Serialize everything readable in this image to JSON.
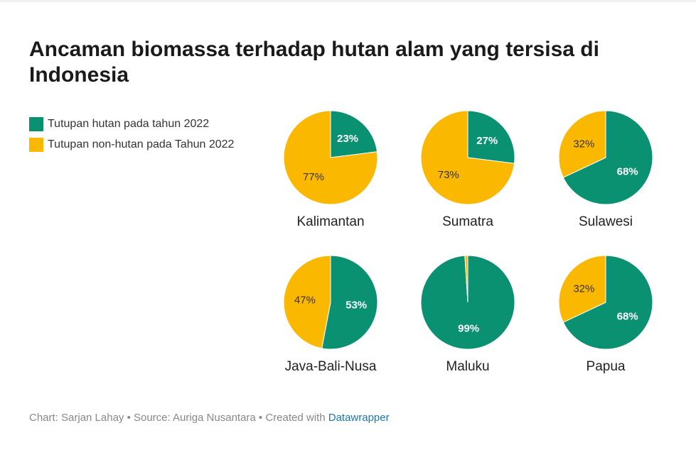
{
  "title": "Ancaman biomassa terhadap hutan alam yang tersisa di Indonesia",
  "colors": {
    "forest": "#0a9172",
    "nonforest": "#fbb800",
    "label_on_forest": "#ffffff",
    "label_on_nonforest": "#333333"
  },
  "legend": [
    {
      "label": "Tutupan hutan pada tahun 2022",
      "color": "#0a9172"
    },
    {
      "label": "Tutupan non-hutan pada Tahun 2022",
      "color": "#fbb800"
    }
  ],
  "chart_data": {
    "type": "pie",
    "series_names": [
      "Tutupan hutan pada tahun 2022",
      "Tutupan non-hutan pada Tahun 2022"
    ],
    "pies": [
      {
        "name": "Kalimantan",
        "forest": 23,
        "nonforest": 77,
        "forest_label": "23%",
        "nonforest_label": "77%"
      },
      {
        "name": "Sumatra",
        "forest": 27,
        "nonforest": 73,
        "forest_label": "27%",
        "nonforest_label": "73%"
      },
      {
        "name": "Sulawesi",
        "forest": 68,
        "nonforest": 32,
        "forest_label": "68%",
        "nonforest_label": "32%"
      },
      {
        "name": "Java-Bali-Nusa",
        "forest": 53,
        "nonforest": 47,
        "forest_label": "53%",
        "nonforest_label": "47%"
      },
      {
        "name": "Maluku",
        "forest": 99,
        "nonforest": 1,
        "forest_label": "99%",
        "nonforest_label": ""
      },
      {
        "name": "Papua",
        "forest": 68,
        "nonforest": 32,
        "forest_label": "68%",
        "nonforest_label": "32%"
      }
    ]
  },
  "footer": {
    "prefix": "Chart: Sarjan Lahay • Source: Auriga Nusantara • Created with ",
    "link": "Datawrapper"
  }
}
